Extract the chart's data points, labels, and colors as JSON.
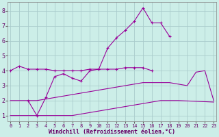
{
  "xlabel": "Windchill (Refroidissement éolien,°C)",
  "background_color": "#cceee8",
  "grid_color": "#aacccc",
  "line_color": "#990099",
  "x_ticks": [
    0,
    1,
    2,
    3,
    4,
    5,
    6,
    7,
    8,
    9,
    10,
    11,
    12,
    13,
    14,
    15,
    16,
    17,
    18,
    19,
    20,
    21,
    22,
    23
  ],
  "y_ticks": [
    1,
    2,
    3,
    4,
    5,
    6,
    7,
    8
  ],
  "xlim": [
    -0.3,
    23.3
  ],
  "ylim": [
    0.6,
    8.6
  ],
  "line1_x": [
    0,
    1,
    2,
    3,
    4,
    5,
    6,
    7,
    8,
    9,
    10,
    11,
    12,
    13,
    14,
    15,
    16
  ],
  "line1_y": [
    4.0,
    4.3,
    4.1,
    4.1,
    4.1,
    4.0,
    4.0,
    4.0,
    4.0,
    4.1,
    4.1,
    4.1,
    4.1,
    4.2,
    4.2,
    4.2,
    4.0
  ],
  "line2_x": [
    2,
    3,
    4,
    5,
    6,
    7,
    8,
    9,
    10,
    11,
    12,
    13,
    14,
    15,
    16,
    17,
    18
  ],
  "line2_y": [
    2.0,
    1.0,
    2.2,
    3.6,
    3.8,
    3.5,
    3.3,
    4.0,
    4.1,
    5.5,
    6.2,
    6.7,
    7.3,
    8.2,
    7.2,
    7.2,
    6.3
  ],
  "line3_x": [
    0,
    1,
    2,
    3,
    4,
    5,
    6,
    7,
    8,
    9,
    10,
    11,
    12,
    13,
    14,
    15,
    16,
    17,
    18,
    19,
    20,
    21,
    22,
    23
  ],
  "line3_y": [
    2.0,
    2.0,
    2.0,
    2.0,
    2.1,
    2.2,
    2.3,
    2.4,
    2.5,
    2.6,
    2.7,
    2.8,
    2.9,
    3.0,
    3.1,
    3.2,
    3.2,
    3.2,
    3.2,
    3.1,
    3.0,
    3.9,
    4.0,
    2.0
  ],
  "line4_x": [
    0,
    1,
    2,
    3,
    4,
    5,
    6,
    7,
    8,
    9,
    10,
    11,
    12,
    13,
    14,
    15,
    16,
    17,
    18,
    19,
    23
  ],
  "line4_y": [
    1.0,
    1.0,
    1.0,
    1.0,
    1.0,
    1.0,
    1.0,
    1.0,
    1.1,
    1.2,
    1.3,
    1.4,
    1.5,
    1.6,
    1.7,
    1.8,
    1.9,
    2.0,
    2.0,
    2.0,
    1.9
  ]
}
